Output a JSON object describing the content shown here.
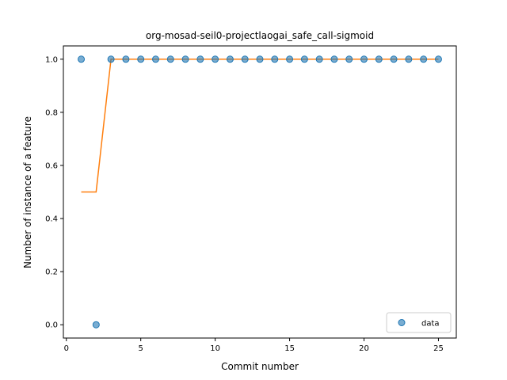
{
  "chart_data": {
    "type": "scatter",
    "title": "org-mosad-seil0-projectlaogai_safe_call-sigmoid",
    "xlabel": "Commit number",
    "ylabel": "Number of instance of a feature",
    "xlim": [
      -0.2,
      26.2
    ],
    "ylim": [
      -0.05,
      1.05
    ],
    "xticks": [
      0,
      5,
      10,
      15,
      20,
      25
    ],
    "yticks": [
      0.0,
      0.2,
      0.4,
      0.6,
      0.8,
      1.0
    ],
    "xtick_labels": [
      "0",
      "5",
      "10",
      "15",
      "20",
      "25"
    ],
    "ytick_labels": [
      "0.0",
      "0.2",
      "0.4",
      "0.6",
      "0.8",
      "1.0"
    ],
    "legend": {
      "placement": "lower-right",
      "entries": [
        "data"
      ]
    },
    "grid": false,
    "series": [
      {
        "name": "data",
        "kind": "scatter",
        "color": "#1f77b4",
        "x": [
          1,
          2,
          3,
          4,
          5,
          6,
          7,
          8,
          9,
          10,
          11,
          12,
          13,
          14,
          15,
          16,
          17,
          18,
          19,
          20,
          21,
          22,
          23,
          24,
          25
        ],
        "y": [
          1,
          0,
          1,
          1,
          1,
          1,
          1,
          1,
          1,
          1,
          1,
          1,
          1,
          1,
          1,
          1,
          1,
          1,
          1,
          1,
          1,
          1,
          1,
          1,
          1
        ]
      },
      {
        "kind": "line",
        "color": "#ff7f0e",
        "x": [
          1,
          2,
          3,
          4,
          5,
          6,
          7,
          8,
          9,
          10,
          11,
          12,
          13,
          14,
          15,
          16,
          17,
          18,
          19,
          20,
          21,
          22,
          23,
          24,
          25
        ],
        "y": [
          0.5,
          0.5,
          1,
          1,
          1,
          1,
          1,
          1,
          1,
          1,
          1,
          1,
          1,
          1,
          1,
          1,
          1,
          1,
          1,
          1,
          1,
          1,
          1,
          1,
          1
        ]
      }
    ]
  }
}
